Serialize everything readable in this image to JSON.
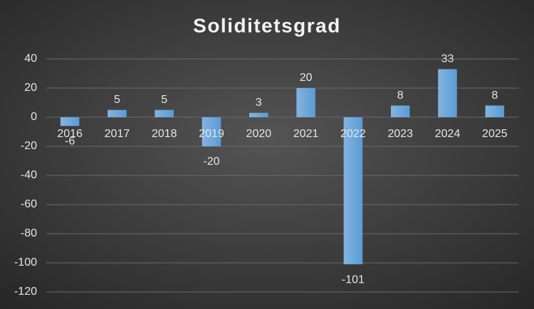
{
  "chart_data": {
    "type": "bar",
    "title": "Soliditetsgrad",
    "categories": [
      "2016",
      "2017",
      "2018",
      "2019",
      "2020",
      "2021",
      "2022",
      "2023",
      "2024",
      "2025"
    ],
    "values": [
      -6,
      5,
      5,
      -20,
      3,
      20,
      -101,
      8,
      33,
      8
    ],
    "color": "#5b9bd5",
    "ylim": [
      -120,
      40
    ],
    "yticks": [
      -120,
      -100,
      -80,
      -60,
      -40,
      -20,
      0,
      20,
      40
    ],
    "grid": true
  }
}
